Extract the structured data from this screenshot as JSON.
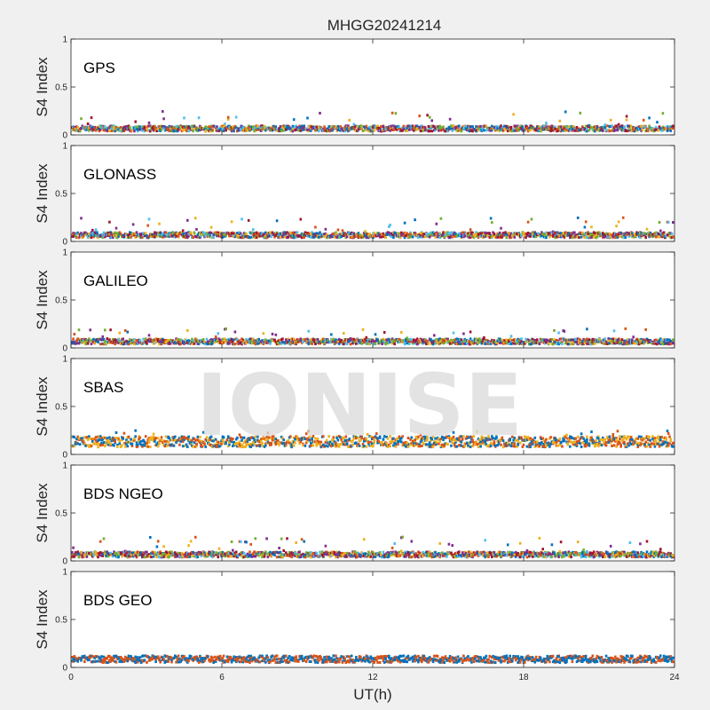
{
  "chart_data": {
    "type": "scatter",
    "title": "MHGG20241214",
    "xlabel": "UT(h)",
    "ylabel": "S4 Index",
    "xlim": [
      0,
      24
    ],
    "ylim": [
      0,
      1
    ],
    "x_ticks": [
      "0",
      "6",
      "12",
      "18",
      "24"
    ],
    "y_ticks": [
      "0",
      "0.5",
      "1"
    ],
    "grid": false,
    "watermark": "IONISE",
    "palette": [
      "#0072BD",
      "#D95319",
      "#EDB120",
      "#7E2F8E",
      "#77AC30",
      "#4DBEEE",
      "#A2142F"
    ],
    "panels": [
      {
        "name": "GPS",
        "typical_s4": 0.07,
        "max_s4": 0.25,
        "series_colors": [
          "#0072BD",
          "#D95319",
          "#EDB120",
          "#7E2F8E",
          "#77AC30",
          "#4DBEEE",
          "#A2142F"
        ]
      },
      {
        "name": "GLONASS",
        "typical_s4": 0.07,
        "max_s4": 0.25,
        "series_colors": [
          "#0072BD",
          "#D95319",
          "#EDB120",
          "#7E2F8E",
          "#77AC30",
          "#4DBEEE",
          "#A2142F"
        ]
      },
      {
        "name": "GALILEO",
        "typical_s4": 0.07,
        "max_s4": 0.2,
        "series_colors": [
          "#0072BD",
          "#D95319",
          "#EDB120",
          "#7E2F8E",
          "#77AC30",
          "#4DBEEE",
          "#A2142F"
        ]
      },
      {
        "name": "SBAS",
        "typical_s4": 0.14,
        "max_s4": 0.25,
        "series_colors": [
          "#0072BD",
          "#D95319",
          "#EDB120"
        ]
      },
      {
        "name": "BDS NGEO",
        "typical_s4": 0.07,
        "max_s4": 0.25,
        "series_colors": [
          "#0072BD",
          "#D95319",
          "#EDB120",
          "#7E2F8E",
          "#77AC30",
          "#4DBEEE",
          "#A2142F"
        ]
      },
      {
        "name": "BDS GEO",
        "typical_s4": 0.09,
        "max_s4": 0.12,
        "series_colors": [
          "#0072BD",
          "#D95319"
        ]
      }
    ]
  }
}
